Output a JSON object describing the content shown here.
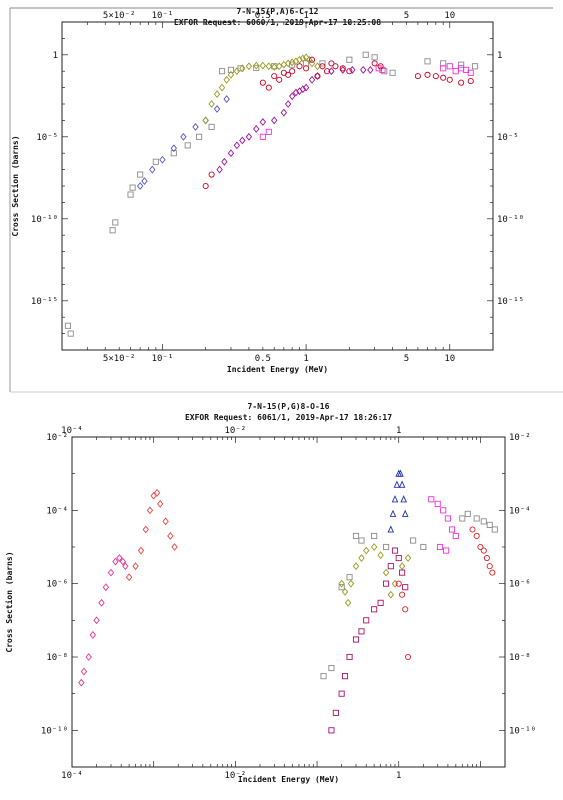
{
  "chart_data": [
    {
      "type": "scatter",
      "title": "7-N-15(P,A)6-C-12",
      "subtitle": "EXFOR Request: 6060/1, 2019-Apr-17 18:25:08",
      "xlabel": "Incident Energy (MeV)",
      "ylabel": "Cross Section (barns)",
      "xscale": "log",
      "yscale": "log",
      "xlim": [
        0.02,
        20
      ],
      "ylim": [
        1e-18,
        100
      ],
      "x_tick_labels": [
        "5×10⁻²",
        "10⁻¹",
        "0.5",
        "1",
        "5",
        "10"
      ],
      "x_ticks": [
        0.05,
        0.1,
        0.5,
        1,
        5,
        10
      ],
      "y_tick_labels_left": [
        "1",
        "10⁻⁵",
        "10⁻¹⁰",
        "10⁻¹⁵"
      ],
      "y_tick_labels_right": [
        "1",
        "10⁻⁵",
        "10⁻¹⁰",
        "10⁻¹⁵"
      ],
      "y_ticks": [
        1,
        1e-05,
        1e-10,
        1e-15
      ],
      "series": [
        {
          "color": "#8c8c8c",
          "marker": "square",
          "points": [
            [
              0.022,
              3e-17
            ],
            [
              0.023,
              1e-17
            ],
            [
              0.045,
              2e-11
            ],
            [
              0.047,
              6e-11
            ],
            [
              0.06,
              3e-09
            ],
            [
              0.062,
              8e-09
            ],
            [
              0.07,
              5e-08
            ],
            [
              0.09,
              3e-07
            ],
            [
              0.12,
              1e-06
            ],
            [
              0.15,
              3e-06
            ],
            [
              0.18,
              1e-05
            ],
            [
              0.22,
              4e-05
            ],
            [
              0.26,
              0.1
            ],
            [
              0.3,
              0.12
            ],
            [
              0.35,
              0.15
            ],
            [
              0.45,
              0.16
            ],
            [
              0.6,
              0.2
            ],
            [
              0.8,
              0.25
            ],
            [
              1.0,
              0.3
            ],
            [
              1.3,
              0.3
            ],
            [
              2.0,
              0.5
            ],
            [
              2.6,
              1.0
            ],
            [
              3.0,
              0.7
            ],
            [
              3.5,
              0.1
            ],
            [
              4.0,
              0.08
            ],
            [
              7.0,
              0.4
            ],
            [
              9,
              0.3
            ],
            [
              12,
              0.25
            ],
            [
              15,
              0.2
            ]
          ]
        },
        {
          "color": "#5555cc",
          "marker": "diamond",
          "points": [
            [
              0.07,
              1e-08
            ],
            [
              0.075,
              2e-08
            ],
            [
              0.085,
              1e-07
            ],
            [
              0.1,
              4e-07
            ],
            [
              0.12,
              2e-06
            ],
            [
              0.14,
              1e-05
            ],
            [
              0.17,
              4e-05
            ],
            [
              0.2,
              0.0001
            ],
            [
              0.24,
              0.0005
            ],
            [
              0.28,
              0.002
            ]
          ]
        },
        {
          "color": "#9a9a22",
          "marker": "diamond",
          "points": [
            [
              0.2,
              0.0001
            ],
            [
              0.22,
              0.001
            ],
            [
              0.24,
              0.004
            ],
            [
              0.26,
              0.01
            ],
            [
              0.28,
              0.03
            ],
            [
              0.3,
              0.06
            ],
            [
              0.33,
              0.1
            ],
            [
              0.36,
              0.15
            ],
            [
              0.4,
              0.2
            ],
            [
              0.45,
              0.22
            ],
            [
              0.5,
              0.22
            ],
            [
              0.55,
              0.2
            ],
            [
              0.6,
              0.18
            ],
            [
              0.65,
              0.2
            ],
            [
              0.7,
              0.25
            ],
            [
              0.75,
              0.3
            ],
            [
              0.8,
              0.35
            ],
            [
              0.85,
              0.4
            ],
            [
              0.9,
              0.5
            ],
            [
              0.95,
              0.6
            ],
            [
              1.0,
              0.7
            ],
            [
              1.05,
              0.5
            ],
            [
              1.1,
              0.3
            ],
            [
              1.2,
              0.2
            ]
          ]
        },
        {
          "color": "#a0109a",
          "marker": "diamond",
          "points": [
            [
              0.25,
              1e-07
            ],
            [
              0.27,
              3e-07
            ],
            [
              0.3,
              1e-06
            ],
            [
              0.33,
              3e-06
            ],
            [
              0.36,
              6e-06
            ],
            [
              0.4,
              1e-05
            ],
            [
              0.45,
              3e-05
            ],
            [
              0.5,
              8e-05
            ],
            [
              0.6,
              0.0001
            ],
            [
              0.7,
              0.0003
            ],
            [
              0.75,
              0.001
            ],
            [
              0.8,
              0.003
            ],
            [
              0.85,
              0.005
            ],
            [
              0.9,
              0.006
            ],
            [
              0.95,
              0.008
            ],
            [
              1.0,
              0.01
            ],
            [
              1.1,
              0.03
            ],
            [
              1.2,
              0.05
            ],
            [
              1.5,
              0.1
            ],
            [
              1.8,
              0.12
            ],
            [
              2.1,
              0.12
            ],
            [
              2.5,
              0.12
            ],
            [
              2.8,
              0.12
            ]
          ]
        },
        {
          "color": "#ee33dd",
          "marker": "square",
          "points": [
            [
              0.5,
              1e-05
            ],
            [
              0.55,
              2e-05
            ],
            [
              3.2,
              0.15
            ],
            [
              3.4,
              0.12
            ],
            [
              9,
              0.15
            ],
            [
              10,
              0.2
            ],
            [
              11,
              0.1
            ],
            [
              12,
              0.15
            ],
            [
              13,
              0.12
            ],
            [
              14,
              0.08
            ]
          ]
        },
        {
          "color": "#cc0022",
          "marker": "circle",
          "points": [
            [
              0.2,
              1e-08
            ],
            [
              0.22,
              5e-08
            ],
            [
              0.5,
              0.02
            ],
            [
              0.55,
              0.01
            ],
            [
              0.6,
              0.05
            ],
            [
              0.65,
              0.03
            ],
            [
              0.7,
              0.08
            ],
            [
              0.75,
              0.06
            ],
            [
              0.8,
              0.1
            ],
            [
              0.9,
              0.2
            ],
            [
              1.0,
              0.15
            ],
            [
              1.1,
              0.5
            ],
            [
              1.2,
              0.05
            ],
            [
              1.3,
              0.2
            ],
            [
              1.4,
              0.1
            ],
            [
              1.5,
              0.3
            ],
            [
              1.6,
              0.2
            ],
            [
              1.8,
              0.15
            ],
            [
              2.0,
              0.1
            ],
            [
              3.0,
              0.3
            ],
            [
              3.3,
              0.2
            ],
            [
              6,
              0.05
            ],
            [
              7,
              0.06
            ],
            [
              8,
              0.05
            ],
            [
              9,
              0.04
            ],
            [
              10,
              0.03
            ],
            [
              12,
              0.02
            ],
            [
              14,
              0.025
            ]
          ]
        }
      ]
    },
    {
      "type": "scatter",
      "title": "7-N-15(P,G)8-O-16",
      "subtitle": "EXFOR Request: 6061/1, 2019-Apr-17 18:26:17",
      "xlabel": "Incident Energy (MeV)",
      "ylabel": "Cross Section (barns)",
      "xscale": "log",
      "yscale": "log",
      "xlim": [
        0.0001,
        20
      ],
      "ylim": [
        1e-11,
        0.01
      ],
      "x_tick_labels": [
        "10⁻⁴",
        "10⁻²",
        "1"
      ],
      "x_ticks": [
        0.0001,
        0.01,
        1
      ],
      "y_tick_labels_left": [
        "10⁻²",
        "10⁻⁴",
        "10⁻⁶",
        "10⁻⁸",
        "10⁻¹⁰"
      ],
      "y_tick_labels_right": [
        "10⁻²",
        "10⁻⁴",
        "10⁻⁶",
        "10⁻⁸",
        "10⁻¹⁰"
      ],
      "y_ticks": [
        0.01,
        0.0001,
        1e-06,
        1e-08,
        1e-10
      ],
      "series": [
        {
          "color": "#ee3399",
          "marker": "diamond",
          "points": [
            [
              0.00013,
              2e-09
            ],
            [
              0.00014,
              4e-09
            ],
            [
              0.00016,
              1e-08
            ],
            [
              0.00018,
              4e-08
            ],
            [
              0.0002,
              1e-07
            ],
            [
              0.00023,
              3e-07
            ],
            [
              0.00026,
              8e-07
            ],
            [
              0.0003,
              2e-06
            ],
            [
              0.00034,
              4e-06
            ],
            [
              0.00038,
              5e-06
            ],
            [
              0.00042,
              4e-06
            ],
            [
              0.00045,
              3e-06
            ]
          ]
        },
        {
          "color": "#ee4444",
          "marker": "diamond",
          "points": [
            [
              0.0005,
              1.5e-06
            ],
            [
              0.0006,
              3e-06
            ],
            [
              0.0007,
              8e-06
            ],
            [
              0.0008,
              3e-05
            ],
            [
              0.0009,
              0.0001
            ],
            [
              0.001,
              0.00025
            ],
            [
              0.0011,
              0.0003
            ],
            [
              0.0012,
              0.00015
            ],
            [
              0.0014,
              5e-05
            ],
            [
              0.0016,
              2e-05
            ],
            [
              0.0018,
              1e-05
            ]
          ]
        },
        {
          "color": "#8c8c8c",
          "marker": "square",
          "points": [
            [
              0.12,
              3e-09
            ],
            [
              0.15,
              5e-09
            ],
            [
              0.2,
              8e-07
            ],
            [
              0.25,
              1.5e-06
            ],
            [
              0.3,
              2e-05
            ],
            [
              0.35,
              1.5e-05
            ],
            [
              0.5,
              2e-05
            ],
            [
              0.7,
              1e-05
            ],
            [
              1.5,
              1.5e-05
            ],
            [
              2.0,
              1e-05
            ],
            [
              6,
              6e-05
            ],
            [
              7,
              8e-05
            ],
            [
              9,
              6e-05
            ],
            [
              11,
              5e-05
            ],
            [
              13,
              4e-05
            ],
            [
              15,
              3e-05
            ]
          ]
        },
        {
          "color": "#9a9a22",
          "marker": "diamond",
          "points": [
            [
              0.2,
              1e-06
            ],
            [
              0.22,
              6e-07
            ],
            [
              0.24,
              3e-07
            ],
            [
              0.26,
              1e-06
            ],
            [
              0.3,
              3e-06
            ],
            [
              0.35,
              5e-06
            ],
            [
              0.4,
              8e-06
            ],
            [
              0.5,
              1e-05
            ],
            [
              0.6,
              6e-06
            ],
            [
              0.7,
              2e-06
            ],
            [
              0.8,
              5e-07
            ],
            [
              0.9,
              1e-06
            ],
            [
              1.1,
              3e-06
            ],
            [
              1.3,
              5e-06
            ]
          ]
        },
        {
          "color": "#2233aa",
          "marker": "triangle",
          "points": [
            [
              0.8,
              3e-05
            ],
            [
              0.85,
              8e-05
            ],
            [
              0.9,
              0.0002
            ],
            [
              0.95,
              0.0005
            ],
            [
              1.0,
              0.001
            ],
            [
              1.05,
              0.001
            ],
            [
              1.1,
              0.0005
            ],
            [
              1.15,
              0.0002
            ],
            [
              1.2,
              8e-05
            ]
          ]
        },
        {
          "color": "#aa1166",
          "marker": "square",
          "points": [
            [
              0.15,
              1e-10
            ],
            [
              0.17,
              3e-10
            ],
            [
              0.2,
              1e-09
            ],
            [
              0.22,
              3e-09
            ],
            [
              0.25,
              1e-08
            ],
            [
              0.3,
              3e-08
            ],
            [
              0.35,
              5e-08
            ],
            [
              0.4,
              1e-07
            ],
            [
              0.5,
              2e-07
            ],
            [
              0.6,
              3e-07
            ],
            [
              0.7,
              1e-06
            ],
            [
              0.8,
              3e-06
            ],
            [
              0.9,
              8e-06
            ],
            [
              1.0,
              5e-06
            ],
            [
              1.1,
              2e-06
            ],
            [
              1.2,
              8e-07
            ]
          ]
        },
        {
          "color": "#ee33dd",
          "marker": "square",
          "points": [
            [
              2.5,
              0.0002
            ],
            [
              3.0,
              0.00015
            ],
            [
              3.5,
              0.0001
            ],
            [
              4,
              6e-05
            ],
            [
              4.5,
              3e-05
            ],
            [
              5,
              2e-05
            ],
            [
              3.2,
              1e-05
            ],
            [
              3.8,
              8e-06
            ]
          ]
        },
        {
          "color": "#dd2222",
          "marker": "circle",
          "points": [
            [
              1.0,
              1e-06
            ],
            [
              1.1,
              5e-07
            ],
            [
              1.2,
              2e-07
            ],
            [
              1.3,
              1e-08
            ],
            [
              8,
              3e-05
            ],
            [
              9,
              2e-05
            ],
            [
              10,
              1e-05
            ],
            [
              11,
              8e-06
            ],
            [
              12,
              5e-06
            ],
            [
              13,
              3e-06
            ],
            [
              14,
              2e-06
            ]
          ]
        }
      ]
    }
  ]
}
